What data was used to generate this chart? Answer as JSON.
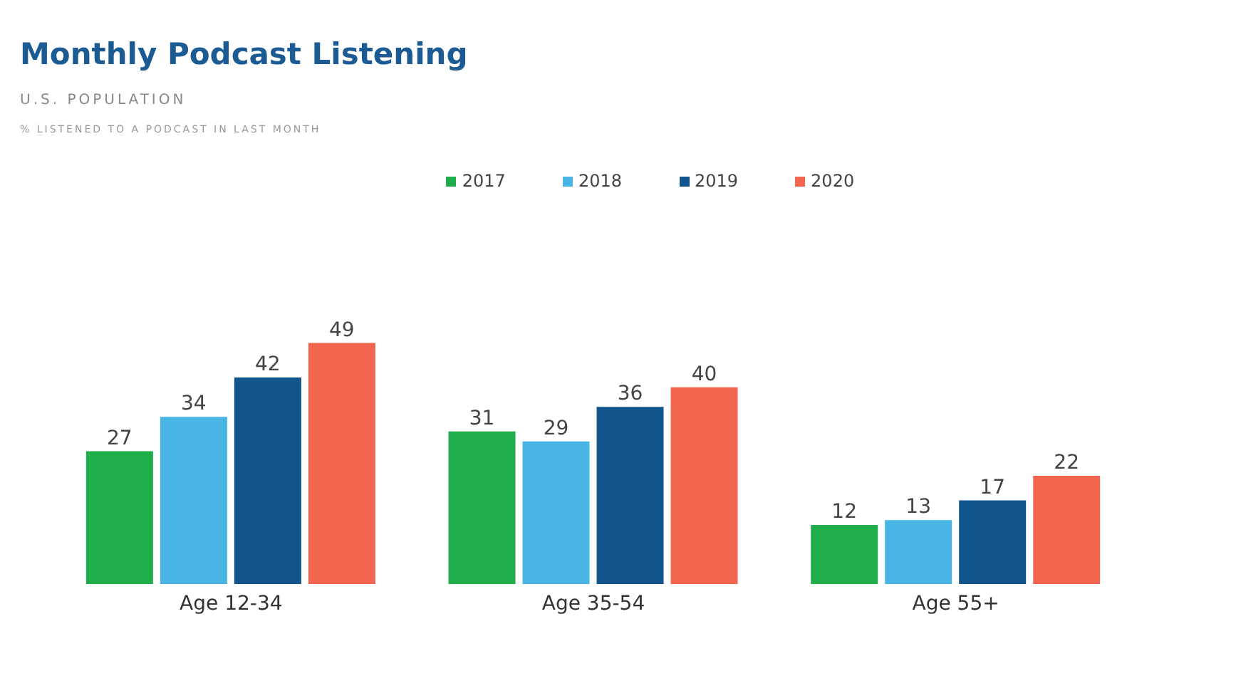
{
  "chart_data": {
    "type": "bar",
    "title": "Monthly Podcast Listening",
    "subtitle": "U.S. POPULATION",
    "annotations": [
      "% LISTENED TO A PODCAST IN LAST MONTH"
    ],
    "categories": [
      "Age 12-34",
      "Age 35-54",
      "Age 55+"
    ],
    "series": [
      {
        "name": "2017",
        "color": "#1fae4b",
        "values": [
          27,
          31,
          12
        ]
      },
      {
        "name": "2018",
        "color": "#48b5e5",
        "values": [
          34,
          29,
          13
        ]
      },
      {
        "name": "2019",
        "color": "#12558c",
        "values": [
          42,
          36,
          17
        ]
      },
      {
        "name": "2020",
        "color": "#f26650",
        "values": [
          49,
          40,
          22
        ]
      }
    ],
    "data_labels": true,
    "legend": "top",
    "grid": false
  }
}
